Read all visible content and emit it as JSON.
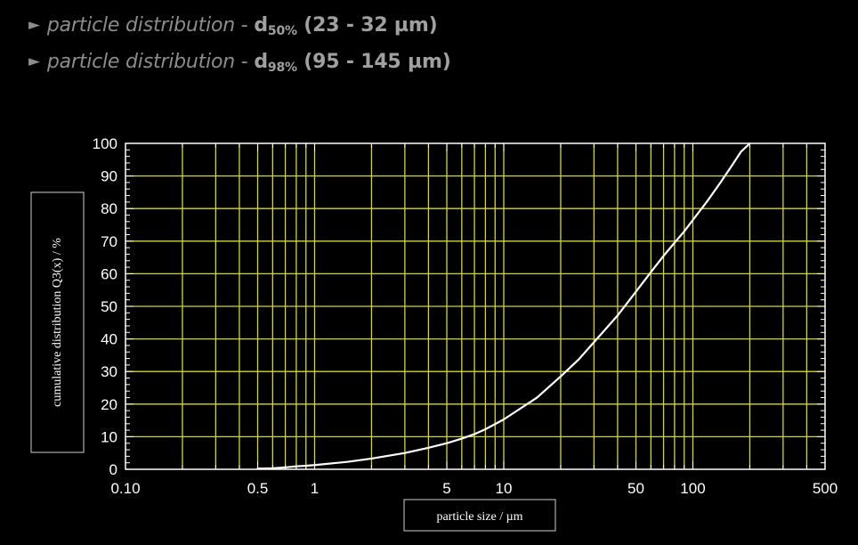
{
  "lines": [
    {
      "arrow": "►",
      "text": "particle distribution",
      "sep": " - ",
      "symbol": "d",
      "subscript": "98%",
      "range": " (95 - 145 µm)"
    },
    {
      "arrow": "►",
      "text": "particle distribution",
      "sep": " - ",
      "symbol": "d",
      "subscript": "50%",
      "range": " (23 - 32 µm)"
    }
  ],
  "colors": {
    "background": "#000000",
    "grid": "#d4d43a",
    "frame": "#ffffff",
    "curve": "#ffffff",
    "heading_text": "#8c8c8c"
  },
  "chart_data": {
    "type": "line",
    "xscale": "log",
    "xlabel": "particle size /  µm",
    "ylabel": "cumulative distribution Q3(x) / %",
    "xlim": [
      0.1,
      500
    ],
    "ylim": [
      0,
      100
    ],
    "grid": true,
    "x_tick_labels": [
      "0.10",
      "0.5",
      "1",
      "5",
      "10",
      "50",
      "100",
      "500"
    ],
    "x_tick_values": [
      0.1,
      0.5,
      1,
      5,
      10,
      50,
      100,
      500
    ],
    "y_tick_labels": [
      "0",
      "10",
      "20",
      "30",
      "40",
      "50",
      "60",
      "70",
      "80",
      "90",
      "100"
    ],
    "y_tick_values": [
      0,
      10,
      20,
      30,
      40,
      50,
      60,
      70,
      80,
      90,
      100
    ],
    "x_gridlines": [
      0.2,
      0.3,
      0.4,
      0.5,
      0.6,
      0.7,
      0.8,
      0.9,
      1,
      2,
      3,
      4,
      5,
      6,
      7,
      8,
      9,
      10,
      20,
      30,
      40,
      50,
      60,
      70,
      80,
      90,
      100,
      200,
      300,
      400
    ],
    "series": [
      {
        "values": [
          [
            0.5,
            0.2
          ],
          [
            0.6,
            0.3
          ],
          [
            0.7,
            0.6
          ],
          [
            0.8,
            0.9
          ],
          [
            0.9,
            1.1
          ],
          [
            1,
            1.3
          ],
          [
            1.5,
            2.3
          ],
          [
            2,
            3.3
          ],
          [
            3,
            5
          ],
          [
            4,
            6.6
          ],
          [
            5,
            8
          ],
          [
            6,
            9.4
          ],
          [
            7,
            10.8
          ],
          [
            8,
            12.3
          ],
          [
            10,
            15.3
          ],
          [
            15,
            22
          ],
          [
            20,
            28.5
          ],
          [
            25,
            33.8
          ],
          [
            30,
            39
          ],
          [
            40,
            47.2
          ],
          [
            50,
            54.5
          ],
          [
            60,
            60.5
          ],
          [
            70,
            65.5
          ],
          [
            80,
            69.5
          ],
          [
            90,
            73
          ],
          [
            100,
            76.5
          ],
          [
            120,
            82.5
          ],
          [
            140,
            88
          ],
          [
            160,
            93
          ],
          [
            180,
            97.5
          ],
          [
            200,
            100
          ]
        ]
      }
    ]
  }
}
